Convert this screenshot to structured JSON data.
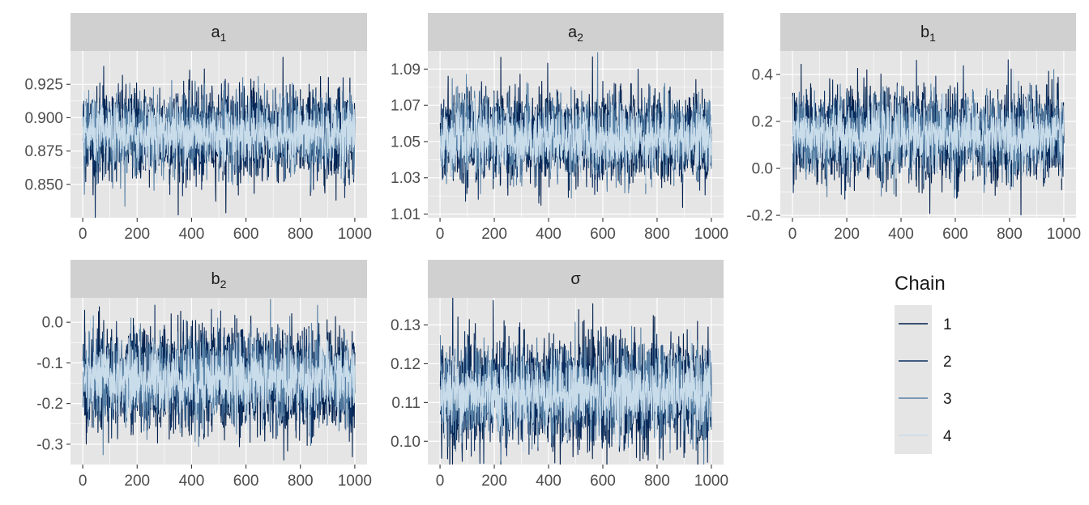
{
  "colors": {
    "panel_bg": "#e5e5e5",
    "strip_bg": "#d0d0d0",
    "grid": "#ffffff",
    "chain_1": "#011f4b",
    "chain_2": "#0b2e60",
    "chain_3": "#5781a6",
    "chain_4": "#c9dcea"
  },
  "chart_data": {
    "type": "line",
    "description_kind": "mcmc-trace",
    "x_ticks": [
      0,
      200,
      400,
      600,
      800,
      1000
    ],
    "xlim": [
      0,
      1000
    ],
    "draws_per_chain": 1000,
    "legend": {
      "title": "Chain",
      "placement": "right",
      "entries": [
        "1",
        "2",
        "3",
        "4"
      ]
    },
    "panels": [
      {
        "id": "a1",
        "strip_base": "a",
        "strip_sub": "1",
        "ylim": [
          0.825,
          0.95
        ],
        "y_ticks": [
          0.85,
          0.875,
          0.9,
          0.925
        ],
        "y_tick_labels": [
          "0.850",
          "0.875",
          "0.900",
          "0.925"
        ],
        "chains": [
          {
            "name": "1",
            "mean": 0.888,
            "sd": 0.0175
          },
          {
            "name": "2",
            "mean": 0.888,
            "sd": 0.016
          },
          {
            "name": "3",
            "mean": 0.888,
            "sd": 0.0145
          },
          {
            "name": "4",
            "mean": 0.888,
            "sd": 0.011
          }
        ]
      },
      {
        "id": "a2",
        "strip_base": "a",
        "strip_sub": "2",
        "ylim": [
          1.008,
          1.1
        ],
        "y_ticks": [
          1.01,
          1.03,
          1.05,
          1.07,
          1.09
        ],
        "y_tick_labels": [
          "1.01",
          "1.03",
          "1.05",
          "1.07",
          "1.09"
        ],
        "chains": [
          {
            "name": "1",
            "mean": 1.052,
            "sd": 0.0125
          },
          {
            "name": "2",
            "mean": 1.052,
            "sd": 0.0115
          },
          {
            "name": "3",
            "mean": 1.052,
            "sd": 0.011
          },
          {
            "name": "4",
            "mean": 1.052,
            "sd": 0.0085
          }
        ]
      },
      {
        "id": "b1",
        "strip_base": "b",
        "strip_sub": "1",
        "ylim": [
          -0.21,
          0.5
        ],
        "y_ticks": [
          -0.2,
          0.0,
          0.2,
          0.4
        ],
        "y_tick_labels": [
          "-0.2",
          "0.0",
          "0.2",
          "0.4"
        ],
        "chains": [
          {
            "name": "1",
            "mean": 0.14,
            "sd": 0.1
          },
          {
            "name": "2",
            "mean": 0.14,
            "sd": 0.09
          },
          {
            "name": "3",
            "mean": 0.14,
            "sd": 0.085
          },
          {
            "name": "4",
            "mean": 0.14,
            "sd": 0.065
          }
        ]
      },
      {
        "id": "b2",
        "strip_base": "b",
        "strip_sub": "2",
        "ylim": [
          -0.35,
          0.06
        ],
        "y_ticks": [
          -0.3,
          -0.2,
          -0.1,
          0.0
        ],
        "y_tick_labels": [
          "-0.3",
          "-0.2",
          "-0.1",
          "0.0"
        ],
        "chains": [
          {
            "name": "1",
            "mean": -0.14,
            "sd": 0.065
          },
          {
            "name": "2",
            "mean": -0.14,
            "sd": 0.06
          },
          {
            "name": "3",
            "mean": -0.14,
            "sd": 0.055
          },
          {
            "name": "4",
            "mean": -0.14,
            "sd": 0.042
          }
        ]
      },
      {
        "id": "sigma",
        "strip_base": "σ",
        "strip_sub": "",
        "ylim": [
          0.094,
          0.137
        ],
        "y_ticks": [
          0.1,
          0.11,
          0.12,
          0.13
        ],
        "y_tick_labels": [
          "0.10",
          "0.11",
          "0.12",
          "0.13"
        ],
        "chains": [
          {
            "name": "1",
            "mean": 0.1125,
            "sd": 0.0072
          },
          {
            "name": "2",
            "mean": 0.1125,
            "sd": 0.0066
          },
          {
            "name": "3",
            "mean": 0.1125,
            "sd": 0.006
          },
          {
            "name": "4",
            "mean": 0.1125,
            "sd": 0.0045
          }
        ]
      }
    ]
  }
}
